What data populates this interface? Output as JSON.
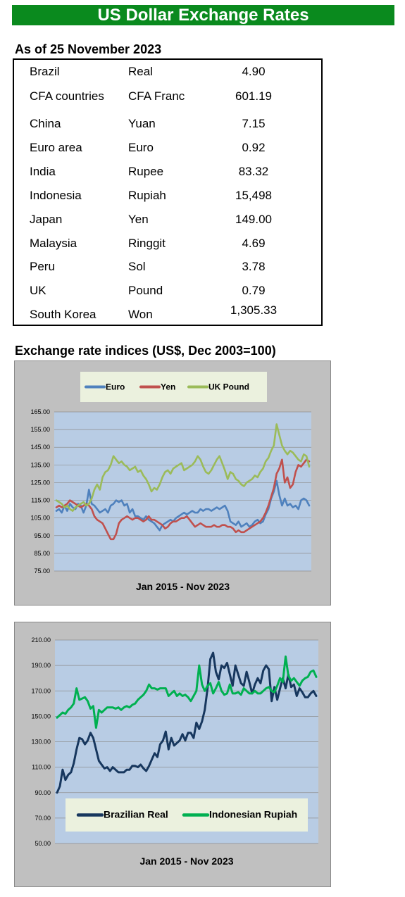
{
  "header": {
    "title": "US Dollar Exchange Rates"
  },
  "table": {
    "as_of": "As of 25 November 2023",
    "rows": [
      {
        "country": "Brazil",
        "currency": "Real",
        "rate": "4.90"
      },
      {
        "country": "CFA countries",
        "currency": "CFA Franc",
        "rate": "601.19"
      },
      {
        "country": "China",
        "currency": "Yuan",
        "rate": "7.15"
      },
      {
        "country": "Euro area",
        "currency": "Euro",
        "rate": "0.92"
      },
      {
        "country": "India",
        "currency": "Rupee",
        "rate": "83.32"
      },
      {
        "country": "Indonesia",
        "currency": "Rupiah",
        "rate": "15,498"
      },
      {
        "country": "Japan",
        "currency": "Yen",
        "rate": "149.00"
      },
      {
        "country": "Malaysia",
        "currency": "Ringgit",
        "rate": "4.69"
      },
      {
        "country": "Peru",
        "currency": "Sol",
        "rate": "3.78"
      },
      {
        "country": "UK",
        "currency": "Pound",
        "rate": "0.79"
      },
      {
        "country": "South Korea",
        "currency": "Won",
        "rate": "1,305.33"
      }
    ]
  },
  "section": {
    "title": "Exchange rate indices (US$, Dec 2003=100)"
  },
  "chart_data": [
    {
      "type": "line",
      "title": "",
      "xlabel": "Jan 2015 - Nov 2023",
      "ylabel": "",
      "ylim": [
        75,
        165
      ],
      "yticks": [
        "165.00",
        "155.00",
        "145.00",
        "135.00",
        "125.00",
        "115.00",
        "105.00",
        "95.00",
        "85.00",
        "75.00"
      ],
      "grid": true,
      "legend_position": "top",
      "x_range": [
        "Jan 2015",
        "Nov 2023"
      ],
      "series": [
        {
          "name": "Euro",
          "color": "#4f81bd",
          "values": [
            109,
            110,
            108,
            112,
            109,
            113,
            111,
            110,
            113,
            112,
            108,
            112,
            121,
            113,
            112,
            110,
            108,
            109,
            110,
            108,
            112,
            113,
            115,
            114,
            115,
            112,
            113,
            108,
            110,
            106,
            106,
            105,
            104,
            106,
            104,
            103,
            102,
            100,
            98,
            101,
            102,
            103,
            104,
            103,
            105,
            106,
            107,
            108,
            107,
            108,
            109,
            108,
            108,
            110,
            109,
            110,
            110,
            109,
            110,
            111,
            110,
            111,
            112,
            109,
            103,
            102,
            101,
            103,
            100,
            101,
            102,
            100,
            101,
            103,
            104,
            102,
            103,
            107,
            110,
            116,
            120,
            126,
            118,
            112,
            116,
            112,
            113,
            111,
            112,
            110,
            115,
            116,
            115,
            112
          ]
        },
        {
          "name": "Yen",
          "color": "#c0504d",
          "values": [
            111,
            112,
            111,
            112,
            113,
            115,
            114,
            113,
            112,
            111,
            112,
            113,
            112,
            110,
            106,
            104,
            103,
            102,
            99,
            96,
            93,
            93,
            96,
            102,
            104,
            105,
            106,
            105,
            104,
            105,
            105,
            104,
            103,
            104,
            106,
            104,
            104,
            103,
            102,
            101,
            99,
            100,
            102,
            103,
            103,
            104,
            105,
            105,
            106,
            104,
            102,
            100,
            101,
            102,
            101,
            100,
            100,
            100,
            101,
            100,
            100,
            101,
            101,
            100,
            100,
            99,
            97,
            98,
            97,
            97,
            98,
            99,
            100,
            101,
            102,
            103,
            105,
            108,
            112,
            117,
            122,
            130,
            133,
            138,
            125,
            128,
            122,
            124,
            131,
            135,
            134,
            136,
            138,
            137
          ]
        },
        {
          "name": "UK Pound",
          "color": "#9bbb59",
          "values": [
            115,
            114,
            113,
            111,
            112,
            110,
            109,
            111,
            112,
            113,
            114,
            112,
            113,
            116,
            121,
            124,
            121,
            128,
            131,
            132,
            135,
            140,
            138,
            136,
            137,
            135,
            134,
            132,
            133,
            134,
            131,
            132,
            129,
            127,
            124,
            120,
            122,
            121,
            124,
            128,
            131,
            132,
            130,
            133,
            134,
            135,
            136,
            132,
            133,
            134,
            135,
            137,
            140,
            138,
            134,
            131,
            130,
            132,
            135,
            138,
            140,
            136,
            132,
            127,
            131,
            130,
            127,
            126,
            124,
            123,
            125,
            126,
            127,
            129,
            128,
            131,
            133,
            137,
            139,
            143,
            146,
            158,
            152,
            146,
            143,
            141,
            143,
            142,
            140,
            138,
            137,
            141,
            140,
            134
          ]
        }
      ]
    },
    {
      "type": "line",
      "title": "",
      "xlabel": "Jan 2015 - Nov 2023",
      "ylabel": "",
      "ylim": [
        50,
        210
      ],
      "yticks": [
        "210.00",
        "190.00",
        "170.00",
        "150.00",
        "130.00",
        "110.00",
        "90.00",
        "70.00",
        "50.00"
      ],
      "grid": true,
      "legend_position": "bottom",
      "x_range": [
        "Jan 2015",
        "Nov 2023"
      ],
      "series": [
        {
          "name": "Brazilian Real",
          "color": "#17375e",
          "values": [
            90,
            95,
            108,
            100,
            104,
            106,
            113,
            124,
            133,
            132,
            128,
            131,
            137,
            133,
            124,
            115,
            112,
            109,
            110,
            107,
            110,
            108,
            106,
            106,
            106,
            108,
            108,
            111,
            111,
            110,
            112,
            109,
            107,
            111,
            116,
            121,
            118,
            128,
            131,
            138,
            124,
            133,
            127,
            129,
            131,
            136,
            131,
            137,
            137,
            133,
            145,
            140,
            146,
            155,
            172,
            195,
            200,
            185,
            179,
            190,
            188,
            192,
            183,
            174,
            190,
            183,
            176,
            174,
            185,
            177,
            168,
            175,
            180,
            176,
            186,
            190,
            187,
            162,
            173,
            163,
            172,
            180,
            172,
            183,
            173,
            175,
            166,
            172,
            169,
            165,
            165,
            168,
            170,
            166
          ]
        },
        {
          "name": "Indonesian Rupiah",
          "color": "#00b050",
          "values": [
            149,
            151,
            153,
            152,
            155,
            157,
            160,
            172,
            163,
            164,
            165,
            162,
            156,
            158,
            141,
            155,
            153,
            155,
            157,
            157,
            157,
            156,
            157,
            155,
            157,
            158,
            157,
            159,
            160,
            163,
            165,
            167,
            170,
            175,
            172,
            172,
            171,
            172,
            172,
            172,
            166,
            168,
            170,
            166,
            168,
            166,
            167,
            165,
            162,
            166,
            170,
            190,
            175,
            170,
            174,
            176,
            168,
            172,
            177,
            170,
            167,
            168,
            175,
            168,
            168,
            169,
            167,
            172,
            170,
            168,
            168,
            170,
            168,
            168,
            170,
            172,
            173,
            170,
            169,
            174,
            180,
            177,
            197,
            182,
            178,
            180,
            177,
            174,
            178,
            180,
            181,
            185,
            186,
            181
          ]
        }
      ]
    }
  ]
}
